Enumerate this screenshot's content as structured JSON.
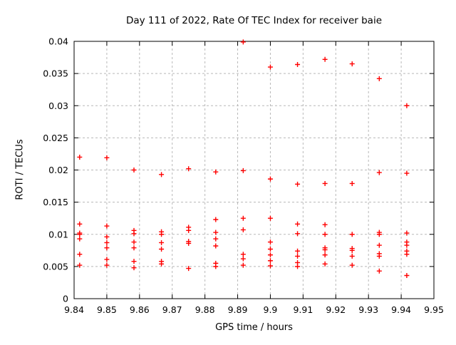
{
  "title": "Day 111 of 2022, Rate Of TEC Index for receiver baie",
  "chart_data": {
    "type": "scatter",
    "title": "Day 111 of 2022, Rate Of TEC Index for receiver baie",
    "xlabel": "GPS time / hours",
    "ylabel": "ROTI / TECUs",
    "xlim": [
      9.84,
      9.95
    ],
    "ylim": [
      0,
      0.04
    ],
    "xtick_labels": [
      "9.84",
      "9.85",
      "9.86",
      "9.87",
      "9.88",
      "9.89",
      "9.9",
      "9.91",
      "9.92",
      "9.93",
      "9.94",
      "9.95"
    ],
    "ytick_labels": [
      "0",
      "0.005",
      "0.01",
      "0.015",
      "0.02",
      "0.025",
      "0.03",
      "0.035",
      "0.04"
    ],
    "grid": true,
    "legend_position": "none",
    "marker": "plus",
    "marker_color": "#ff0000",
    "frame_color": "#000000",
    "grid_color": "#b8b8b8",
    "series": [
      {
        "name": "ROTI",
        "columns": [
          {
            "t": 9.8417,
            "values": [
              0.022,
              0.0116,
              0.0102,
              0.01,
              0.0093,
              0.0069,
              0.0052
            ]
          },
          {
            "t": 9.85,
            "values": [
              0.0219,
              0.0113,
              0.0096,
              0.0087,
              0.0079,
              0.0061,
              0.0052
            ]
          },
          {
            "t": 9.8583,
            "values": [
              0.02,
              0.0106,
              0.0101,
              0.0088,
              0.0079,
              0.0058,
              0.0048
            ]
          },
          {
            "t": 9.8667,
            "values": [
              0.0193,
              0.0104,
              0.01,
              0.0087,
              0.0077,
              0.0058,
              0.0054
            ]
          },
          {
            "t": 9.875,
            "values": [
              0.0202,
              0.0111,
              0.0106,
              0.0089,
              0.0086,
              0.0047
            ]
          },
          {
            "t": 9.8833,
            "values": [
              0.0197,
              0.0123,
              0.0103,
              0.0093,
              0.0082,
              0.0055,
              0.005
            ]
          },
          {
            "t": 9.8917,
            "values": [
              0.0399,
              0.0199,
              0.0125,
              0.0107,
              0.0069,
              0.0062,
              0.0052
            ]
          },
          {
            "t": 9.9,
            "values": [
              0.036,
              0.0186,
              0.0125,
              0.0088,
              0.0077,
              0.0068,
              0.0059,
              0.0051
            ]
          },
          {
            "t": 9.9083,
            "values": [
              0.0364,
              0.0178,
              0.0116,
              0.0101,
              0.0074,
              0.0066,
              0.0056,
              0.005
            ]
          },
          {
            "t": 9.9167,
            "values": [
              0.0372,
              0.0179,
              0.0115,
              0.01,
              0.0079,
              0.0076,
              0.0068,
              0.0054
            ]
          },
          {
            "t": 9.925,
            "values": [
              0.0365,
              0.0179,
              0.01,
              0.0078,
              0.0075,
              0.0066,
              0.0052
            ]
          },
          {
            "t": 9.9333,
            "values": [
              0.0342,
              0.0196,
              0.0103,
              0.01,
              0.0083,
              0.007,
              0.0066,
              0.0043
            ]
          },
          {
            "t": 9.9417,
            "values": [
              0.03,
              0.0195,
              0.0102,
              0.0088,
              0.0083,
              0.0074,
              0.0069,
              0.0036
            ]
          }
        ]
      }
    ]
  }
}
